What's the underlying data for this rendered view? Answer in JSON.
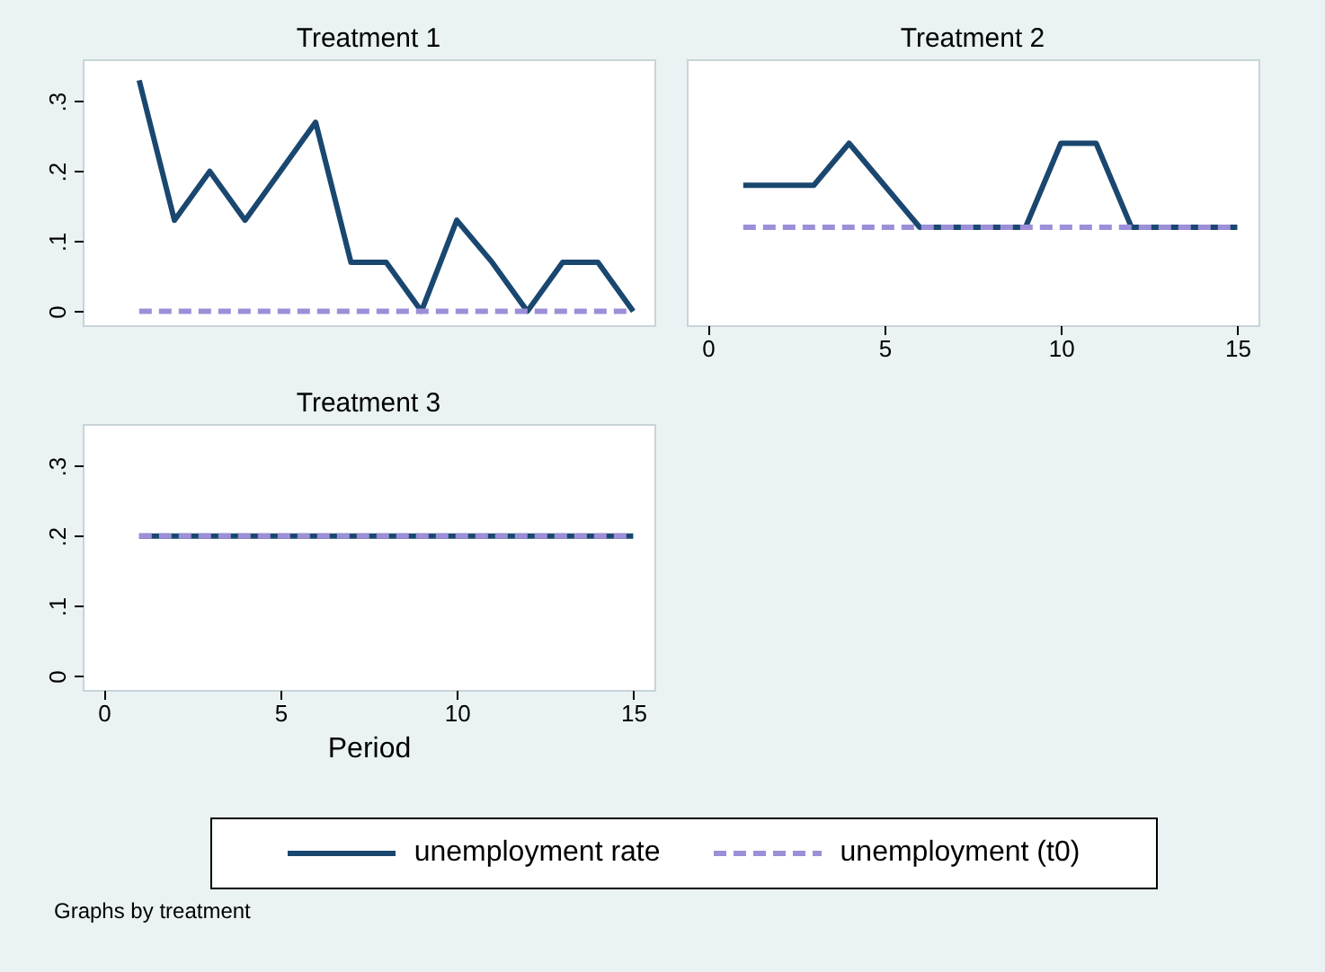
{
  "chart_data": [
    {
      "type": "line",
      "title": "Treatment 1",
      "x": [
        1,
        2,
        3,
        4,
        5,
        6,
        7,
        8,
        9,
        10,
        11,
        12,
        13,
        14,
        15
      ],
      "xlim": [
        -0.6,
        15.6
      ],
      "ylim": [
        -0.02,
        0.36
      ],
      "yticks": [
        0,
        {
          "value": 0.1,
          "label": ".1"
        },
        {
          "value": 0.2,
          "label": ".2"
        },
        {
          "value": 0.3,
          "label": ".3"
        }
      ],
      "tick_labels": "y",
      "series": [
        {
          "color": "#1a476f",
          "line_style": "solid",
          "values": [
            0.33,
            0.13,
            0.2,
            0.13,
            0.2,
            0.27,
            0.07,
            0.07,
            0,
            0.13,
            0.07,
            0,
            0.07,
            0.07,
            0
          ]
        },
        {
          "color": "#9c8fd8",
          "line_style": "dashed",
          "values": [
            0,
            0,
            0,
            0,
            0,
            0,
            0,
            0,
            0,
            0,
            0,
            0,
            0,
            0,
            0
          ]
        }
      ]
    },
    {
      "type": "line",
      "title": "Treatment 2",
      "x": [
        1,
        2,
        3,
        4,
        5,
        6,
        7,
        8,
        9,
        10,
        11,
        12,
        13,
        14,
        15
      ],
      "xlim": [
        -0.6,
        15.6
      ],
      "xticks": [
        0,
        5,
        10,
        15
      ],
      "ylim": [
        -0.02,
        0.36
      ],
      "tick_labels": "x",
      "series": [
        {
          "color": "#1a476f",
          "line_style": "solid",
          "values": [
            0.18,
            0.18,
            0.18,
            0.24,
            0.18,
            0.12,
            0.12,
            0.12,
            0.12,
            0.24,
            0.24,
            0.12,
            0.12,
            0.12,
            0.12
          ]
        },
        {
          "color": "#9c8fd8",
          "line_style": "dashed",
          "values": [
            0.12,
            0.12,
            0.12,
            0.12,
            0.12,
            0.12,
            0.12,
            0.12,
            0.12,
            0.12,
            0.12,
            0.12,
            0.12,
            0.12,
            0.12
          ]
        }
      ]
    },
    {
      "type": "line",
      "title": "Treatment 3",
      "xlabel": "Period",
      "x": [
        1,
        2,
        3,
        4,
        5,
        6,
        7,
        8,
        9,
        10,
        11,
        12,
        13,
        14,
        15
      ],
      "xlim": [
        -0.6,
        15.6
      ],
      "xticks": [
        0,
        5,
        10,
        15
      ],
      "ylim": [
        -0.02,
        0.36
      ],
      "yticks": [
        0,
        {
          "value": 0.1,
          "label": ".1"
        },
        {
          "value": 0.2,
          "label": ".2"
        },
        {
          "value": 0.3,
          "label": ".3"
        }
      ],
      "legend": "bottom",
      "annotations": [
        "Graphs by treatment"
      ],
      "series": [
        {
          "name": "unemployment rate",
          "color": "#1a476f",
          "line_style": "solid",
          "values": [
            0.2,
            0.2,
            0.2,
            0.2,
            0.2,
            0.2,
            0.2,
            0.2,
            0.2,
            0.2,
            0.2,
            0.2,
            0.2,
            0.2,
            0.2
          ]
        },
        {
          "name": "unemployment (t0)",
          "color": "#9c8fd8",
          "line_style": "dashed",
          "values": [
            0.2,
            0.2,
            0.2,
            0.2,
            0.2,
            0.2,
            0.2,
            0.2,
            0.2,
            0.2,
            0.2,
            0.2,
            0.2,
            0.2,
            0.2
          ]
        }
      ]
    }
  ]
}
